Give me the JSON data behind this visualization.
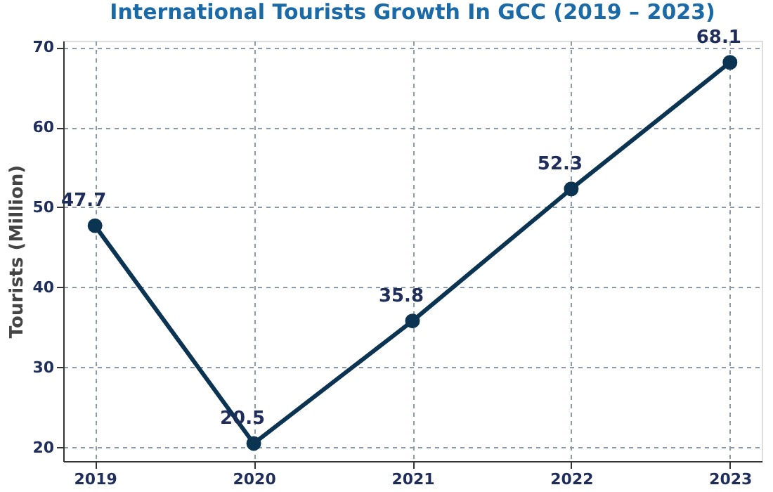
{
  "chart_data": {
    "type": "line",
    "title": "International Tourists Growth In GCC (2019 – 2023)",
    "ylabel": "Tourists (Million)",
    "x": [
      2019,
      2020,
      2021,
      2022,
      2023
    ],
    "series": [
      {
        "color": "#0b3352",
        "values": [
          47.7,
          20.5,
          35.8,
          52.3,
          68.1
        ]
      }
    ],
    "xlim": [
      2018.8,
      2023.2
    ],
    "xticks": [
      2019,
      2020,
      2021,
      2022,
      2023
    ],
    "ylim": [
      18.3,
      70.8
    ],
    "yticks": [
      20,
      30,
      40,
      50,
      60,
      70
    ],
    "grid": true,
    "marker": "circle",
    "line_style": "solid",
    "data_labels": true
  }
}
